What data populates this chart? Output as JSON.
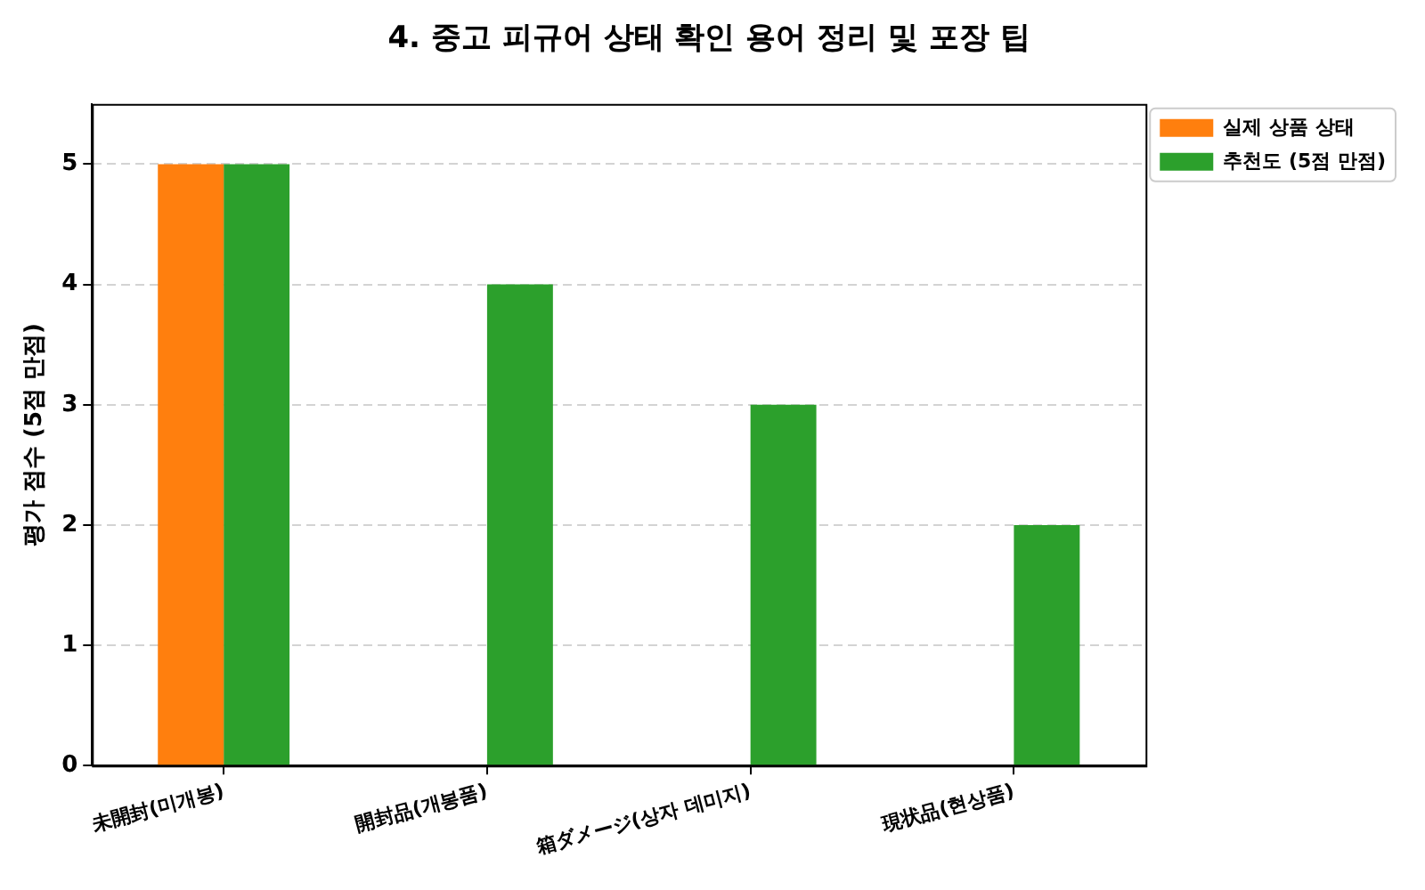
{
  "chart_data": {
    "type": "bar",
    "title": "4. 중고 피규어 상태 확인 용어 정리 및 포장 팁",
    "ylabel": "평가 점수 (5점 만점)",
    "categories": [
      "未開封(미개봉)",
      "開封品(개봉품)",
      "箱ダメージ(상자 데미지)",
      "現状品(현상품)"
    ],
    "series": [
      {
        "name": "실제 상품 상태",
        "color": "#ff7f0e",
        "values": [
          5,
          null,
          null,
          null
        ]
      },
      {
        "name": "추천도 (5점 만점)",
        "color": "#2ca02c",
        "values": [
          5,
          4,
          3,
          2
        ]
      }
    ],
    "ylim": [
      0,
      5.5
    ],
    "yticks": [
      0,
      1,
      2,
      3,
      4,
      5
    ],
    "grid": "y",
    "legend": "top right"
  }
}
